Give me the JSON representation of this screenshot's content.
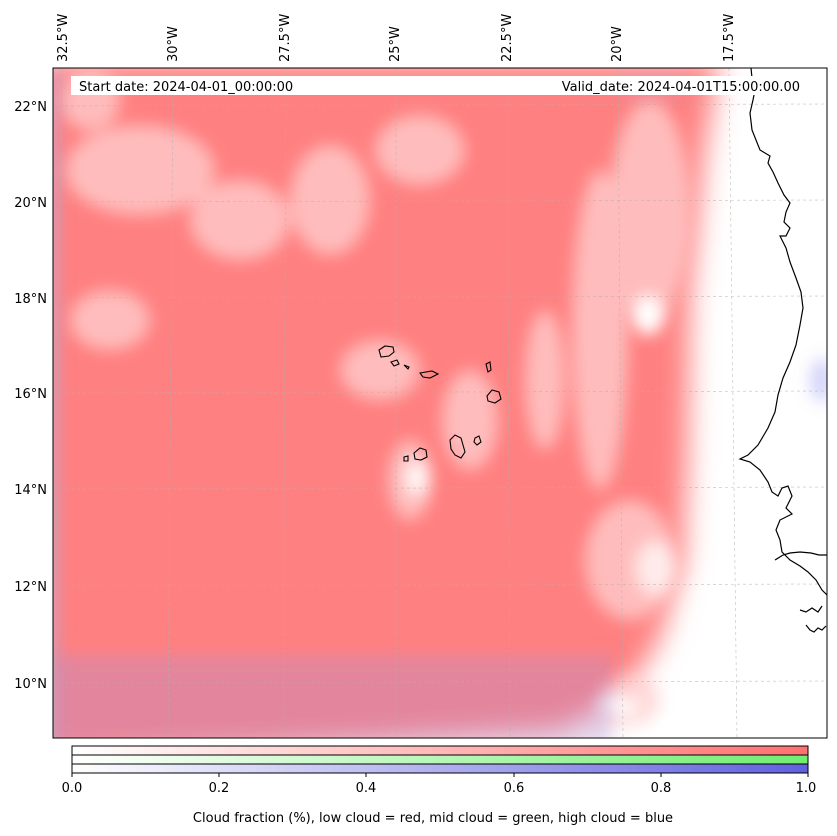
{
  "header": {
    "start_date": "Start date: 2024-04-01_00:00:00",
    "valid_date": "Valid_date: 2024-04-01T15:00:00.00"
  },
  "map": {
    "lon_labels": [
      "32.5°W",
      "30°W",
      "27.5°W",
      "25°W",
      "22.5°W",
      "20°W",
      "17.5°W"
    ],
    "lat_labels": [
      "22°N",
      "20°N",
      "18°N",
      "16°N",
      "14°N",
      "12°N",
      "10°N"
    ],
    "layers": [
      {
        "name": "low cloud",
        "color": "#ff8080"
      },
      {
        "name": "mid cloud",
        "color": "#80f080"
      },
      {
        "name": "high cloud",
        "color": "#8080f0"
      }
    ],
    "gridlines": "dashed"
  },
  "colorbar": {
    "ticks": [
      "0.0",
      "0.2",
      "0.4",
      "0.6",
      "0.8",
      "1.0"
    ],
    "label": "Cloud fraction (%), low cloud = red, mid cloud = green, high cloud = blue",
    "colors": {
      "low": "#ff7070",
      "mid": "#70ee70",
      "high": "#6060e0"
    }
  }
}
